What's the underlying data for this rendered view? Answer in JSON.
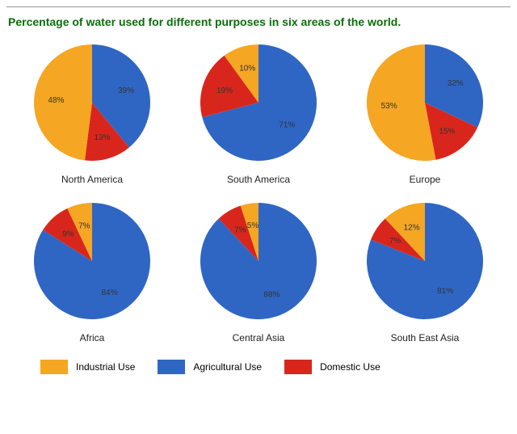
{
  "title": "Percentage of water used for different purposes in six areas of the world.",
  "title_color": "#0b6e0b",
  "title_fontsize": 14,
  "background_color": "#ffffff",
  "pie_radius": 72,
  "label_offset": 0.62,
  "label_fontsize": 10,
  "region_label_fontsize": 12,
  "categories": [
    {
      "key": "industrial",
      "label": "Industrial Use",
      "color": "#f5a623"
    },
    {
      "key": "agricultural",
      "label": "Agricultural Use",
      "color": "#2f66c4"
    },
    {
      "key": "domestic",
      "label": "Domestic Use",
      "color": "#d9261c"
    }
  ],
  "start_angle_deg": -90,
  "direction": "clockwise",
  "order": [
    "agricultural",
    "domestic",
    "industrial"
  ],
  "regions": [
    {
      "name": "North America",
      "values": {
        "industrial": 48,
        "agricultural": 39,
        "domestic": 13
      }
    },
    {
      "name": "South America",
      "values": {
        "industrial": 10,
        "agricultural": 71,
        "domestic": 19
      }
    },
    {
      "name": "Europe",
      "values": {
        "industrial": 53,
        "agricultural": 32,
        "domestic": 15
      }
    },
    {
      "name": "Africa",
      "values": {
        "industrial": 7,
        "agricultural": 84,
        "domestic": 9
      }
    },
    {
      "name": "Central Asia",
      "values": {
        "industrial": 5,
        "agricultural": 88,
        "domestic": 7
      }
    },
    {
      "name": "South East Asia",
      "values": {
        "industrial": 12,
        "agricultural": 81,
        "domestic": 7
      }
    }
  ],
  "legend_swatch": {
    "width": 34,
    "height": 18
  }
}
